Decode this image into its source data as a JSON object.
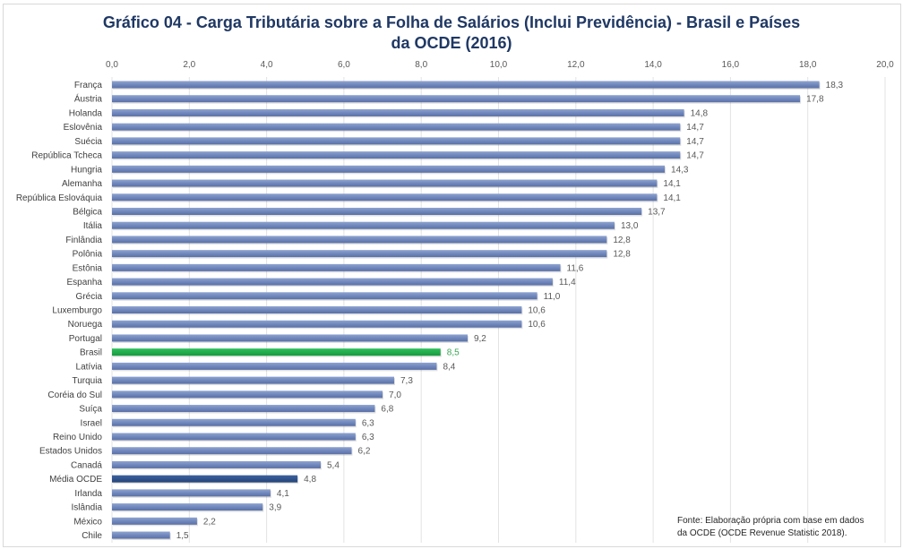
{
  "chart_data": {
    "type": "bar",
    "orientation": "horizontal",
    "title_line1": "Gráfico 04 - Carga Tributária sobre a Folha de Salários (Inclui Previdência) - Brasil e Países",
    "title_line2": "da OCDE (2016)",
    "xlabel": "",
    "ylabel": "",
    "xlim": [
      0,
      20
    ],
    "xticks": [
      "0,0",
      "2,0",
      "4,0",
      "6,0",
      "8,0",
      "10,0",
      "12,0",
      "14,0",
      "16,0",
      "18,0",
      "20,0"
    ],
    "xtick_values": [
      0,
      2,
      4,
      6,
      8,
      10,
      12,
      14,
      16,
      18,
      20
    ],
    "grid": true,
    "axis_position": "top",
    "categories": [
      "França",
      "Áustria",
      "Holanda",
      "Eslovênia",
      "Suécia",
      "República Tcheca",
      "Hungria",
      "Alemanha",
      "República Eslováquia",
      "Bélgica",
      "Itália",
      "Finlândia",
      "Polônia",
      "Estônia",
      "Espanha",
      "Grécia",
      "Luxemburgo",
      "Noruega",
      "Portugal",
      "Brasil",
      "Latívia",
      "Turquia",
      "Coréia do Sul",
      "Suíça",
      "Israel",
      "Reino Unido",
      "Estados Unidos",
      "Canadá",
      "Média OCDE",
      "Irlanda",
      "Islândia",
      "México",
      "Chile"
    ],
    "values": [
      18.3,
      17.8,
      14.8,
      14.7,
      14.7,
      14.7,
      14.3,
      14.1,
      14.1,
      13.7,
      13.0,
      12.8,
      12.8,
      11.6,
      11.4,
      11.0,
      10.6,
      10.6,
      9.2,
      8.5,
      8.4,
      7.3,
      7.0,
      6.8,
      6.3,
      6.3,
      6.2,
      5.4,
      4.8,
      4.1,
      3.9,
      2.2,
      1.5
    ],
    "value_labels": [
      "18,3",
      "17,8",
      "14,8",
      "14,7",
      "14,7",
      "14,7",
      "14,3",
      "14,1",
      "14,1",
      "13,7",
      "13,0",
      "12,8",
      "12,8",
      "11,6",
      "11,4",
      "11,0",
      "10,6",
      "10,6",
      "9,2",
      "8,5",
      "8,4",
      "7,3",
      "7,0",
      "6,8",
      "6,3",
      "6,3",
      "6,2",
      "5,4",
      "4,8",
      "4,1",
      "3,9",
      "2,2",
      "1,5"
    ],
    "highlight": {
      "Brasil": "#1faa4b",
      "Média OCDE": "#2f5189"
    },
    "bar_color": "#7188bd",
    "source_line1": "Fonte:  Elaboração própria com base em dados",
    "source_line2": "da OCDE (OCDE Revenue Statistic 2018)."
  }
}
